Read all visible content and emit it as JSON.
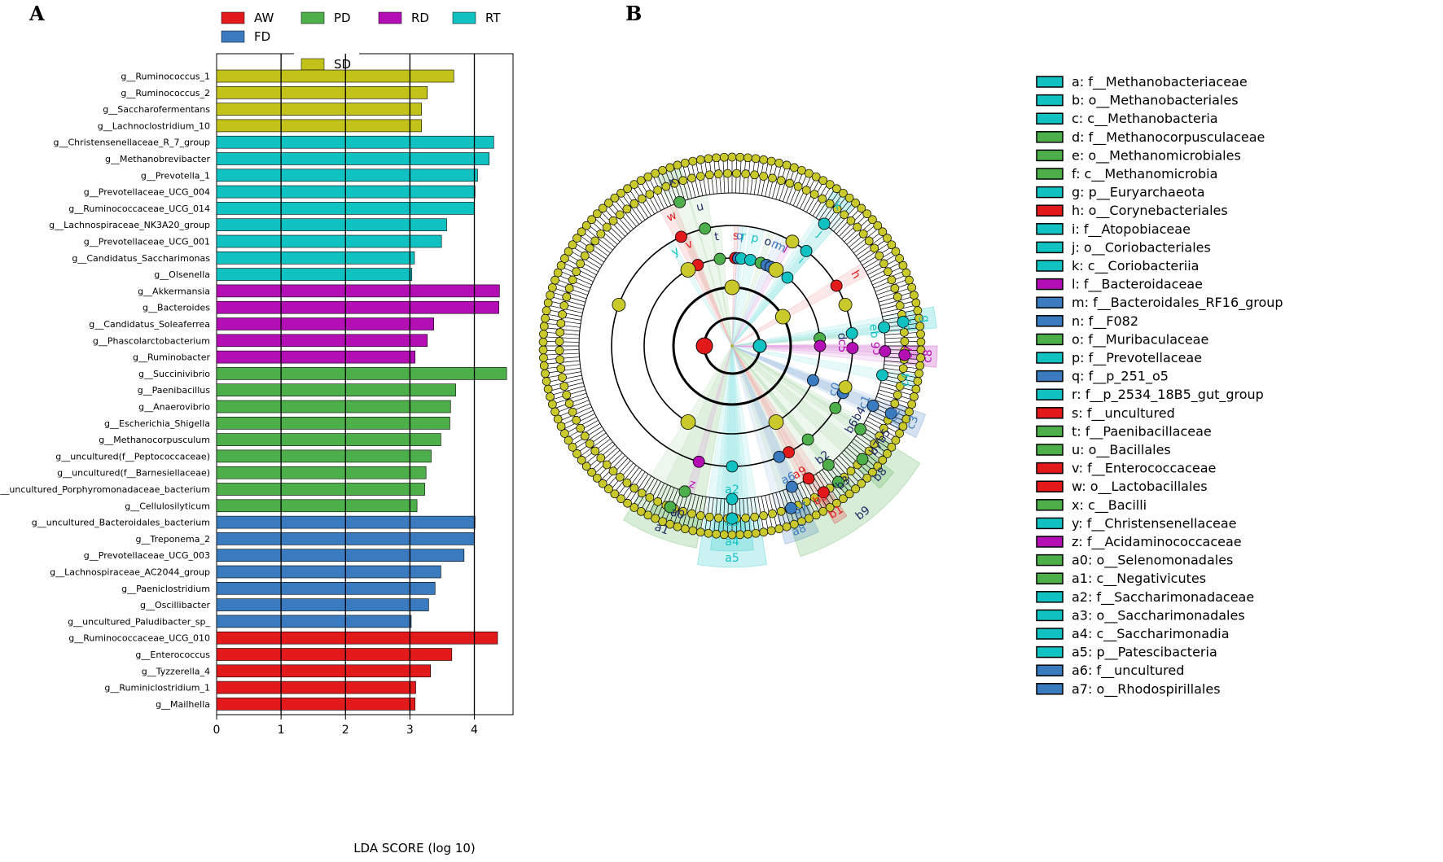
{
  "colors": {
    "AW": "#e31a1c",
    "PD": "#4daf4a",
    "RD": "#b40fb4",
    "RT": "#11c2c2",
    "FD": "#3a7abf",
    "SD": "#c2c21a",
    "node_default": "#c9c92c"
  },
  "panels": {
    "a": "A",
    "b": "B"
  },
  "chart_data": [
    {
      "type": "bar",
      "orientation": "horizontal",
      "title": "",
      "xlabel": "LDA SCORE (log 10)",
      "ylabel": "",
      "xlim": [
        0,
        4.6
      ],
      "xticks": [
        "0",
        "1",
        "2",
        "3",
        "4"
      ],
      "grid": true,
      "legend": {
        "placement": "top",
        "entries": [
          {
            "name": "AW",
            "group": "AW"
          },
          {
            "name": "PD",
            "group": "PD"
          },
          {
            "name": "RD",
            "group": "RD"
          },
          {
            "name": "RT",
            "group": "RT"
          },
          {
            "name": "FD",
            "group": "FD"
          },
          {
            "name": "SD",
            "group": "SD"
          }
        ]
      },
      "bars": [
        {
          "label": "g__Ruminococcus_1",
          "value": 3.68,
          "group": "SD"
        },
        {
          "label": "g__Ruminococcus_2",
          "value": 3.27,
          "group": "SD"
        },
        {
          "label": "g__Saccharofermentans",
          "value": 3.18,
          "group": "SD"
        },
        {
          "label": "g__Lachnoclostridium_10",
          "value": 3.18,
          "group": "SD"
        },
        {
          "label": "g__Christensenellaceae_R_7_group",
          "value": 4.3,
          "group": "RT"
        },
        {
          "label": "g__Methanobrevibacter",
          "value": 4.23,
          "group": "RT"
        },
        {
          "label": "g__Prevotella_1",
          "value": 4.05,
          "group": "RT"
        },
        {
          "label": "g__Prevotellaceae_UCG_004",
          "value": 4.01,
          "group": "RT"
        },
        {
          "label": "g__Ruminococcaceae_UCG_014",
          "value": 4.0,
          "group": "RT"
        },
        {
          "label": "g__Lachnospiraceae_NK3A20_group",
          "value": 3.57,
          "group": "RT"
        },
        {
          "label": "g__Prevotellaceae_UCG_001",
          "value": 3.49,
          "group": "RT"
        },
        {
          "label": "g__Candidatus_Saccharimonas",
          "value": 3.07,
          "group": "RT"
        },
        {
          "label": "g__Olsenella",
          "value": 3.03,
          "group": "RT"
        },
        {
          "label": "g__Akkermansia",
          "value": 4.39,
          "group": "RD"
        },
        {
          "label": "g__Bacteroides",
          "value": 4.38,
          "group": "RD"
        },
        {
          "label": "g__Candidatus_Soleaferrea",
          "value": 3.37,
          "group": "RD"
        },
        {
          "label": "g__Phascolarctobacterium",
          "value": 3.27,
          "group": "RD"
        },
        {
          "label": "g__Ruminobacter",
          "value": 3.08,
          "group": "RD"
        },
        {
          "label": "g__Succinivibrio",
          "value": 4.5,
          "group": "PD"
        },
        {
          "label": "g__Paenibacillus",
          "value": 3.71,
          "group": "PD"
        },
        {
          "label": "g__Anaerovibrio",
          "value": 3.63,
          "group": "PD"
        },
        {
          "label": "g__Escherichia_Shigella",
          "value": 3.62,
          "group": "PD"
        },
        {
          "label": "g__Methanocorpusculum",
          "value": 3.48,
          "group": "PD"
        },
        {
          "label": "g__uncultured(f__Peptococcaceae)",
          "value": 3.33,
          "group": "PD"
        },
        {
          "label": "g__uncultured(f__Barnesiellaceae)",
          "value": 3.25,
          "group": "PD"
        },
        {
          "label": "g__uncultured_Porphyromonadaceae_bacterium",
          "value": 3.23,
          "group": "PD"
        },
        {
          "label": "g__Cellulosilyticum",
          "value": 3.11,
          "group": "PD"
        },
        {
          "label": "g__uncultured_Bacteroidales_bacterium",
          "value": 4.01,
          "group": "FD"
        },
        {
          "label": "g__Treponema_2",
          "value": 4.0,
          "group": "FD"
        },
        {
          "label": "g__Prevotellaceae_UCG_003",
          "value": 3.84,
          "group": "FD"
        },
        {
          "label": "g__Lachnospiraceae_AC2044_group",
          "value": 3.48,
          "group": "FD"
        },
        {
          "label": "g__Paeniclostridium",
          "value": 3.39,
          "group": "FD"
        },
        {
          "label": "g__Oscillibacter",
          "value": 3.29,
          "group": "FD"
        },
        {
          "label": "g__uncultured_Paludibacter_sp_",
          "value": 3.02,
          "group": "FD"
        },
        {
          "label": "g__Ruminococcaceae_UCG_010",
          "value": 4.36,
          "group": "AW"
        },
        {
          "label": "g__Enterococcus",
          "value": 3.65,
          "group": "AW"
        },
        {
          "label": "g__Tyzzerella_4",
          "value": 3.32,
          "group": "AW"
        },
        {
          "label": "g__Ruminiclostridium_1",
          "value": 3.09,
          "group": "AW"
        },
        {
          "label": "g__Mailhella",
          "value": 3.08,
          "group": "AW"
        }
      ]
    },
    {
      "type": "cladogram",
      "title": "",
      "sectors": [
        {
          "label": "x",
          "group": "PD",
          "angle": -20,
          "span": 8,
          "ring": 5
        },
        {
          "label": "u",
          "group": "PD",
          "angle": -13,
          "span": 7,
          "ring": 4
        },
        {
          "label": "t",
          "group": "PD",
          "angle": -8,
          "span": 5,
          "ring": 3
        },
        {
          "label": "w",
          "group": "AW",
          "angle": -25,
          "span": 6,
          "ring": 4
        },
        {
          "label": "v",
          "group": "AW",
          "angle": -23,
          "span": 4,
          "ring": 3
        },
        {
          "label": "y",
          "group": "RT",
          "angle": -31,
          "span": 3,
          "ring": 3
        },
        {
          "label": "s",
          "group": "AW",
          "angle": 2,
          "span": 2,
          "ring": 3
        },
        {
          "label": "q",
          "group": "FD",
          "angle": 4,
          "span": 2,
          "ring": 3
        },
        {
          "label": "r",
          "group": "RT",
          "angle": 6,
          "span": 2,
          "ring": 3
        },
        {
          "label": "p",
          "group": "RT",
          "angle": 12,
          "span": 7,
          "ring": 3
        },
        {
          "label": "o",
          "group": "PD",
          "angle": 19,
          "span": 3,
          "ring": 3
        },
        {
          "label": "n",
          "group": "FD",
          "angle": 23,
          "span": 2,
          "ring": 3
        },
        {
          "label": "m",
          "group": "FD",
          "angle": 26,
          "span": 2,
          "ring": 3
        },
        {
          "label": "l",
          "group": "RD",
          "angle": 29,
          "span": 3,
          "ring": 3
        },
        {
          "label": "k",
          "group": "RT",
          "angle": 37,
          "span": 8,
          "ring": 5
        },
        {
          "label": "j",
          "group": "RT",
          "angle": 38,
          "span": 6,
          "ring": 4
        },
        {
          "label": "i",
          "group": "RT",
          "angle": 39,
          "span": 4,
          "ring": 3
        },
        {
          "label": "h",
          "group": "AW",
          "angle": 60,
          "span": 5,
          "ring": 4
        },
        {
          "label": "g",
          "group": "RT",
          "angle": 82,
          "span": 6,
          "ring": 6
        },
        {
          "label": "fc",
          "group": "RT",
          "angle": 83,
          "span": 4,
          "ring": 5
        },
        {
          "label": "eb",
          "group": "RT",
          "angle": 84,
          "span": 3,
          "ring": 4
        },
        {
          "label": "d",
          "group": "PD",
          "angle": 85,
          "span": 2,
          "ring": 3
        },
        {
          "label": "c8",
          "group": "RD",
          "angle": 93,
          "span": 6,
          "ring": 6
        },
        {
          "label": "c7",
          "group": "RD",
          "angle": 92,
          "span": 4,
          "ring": 5
        },
        {
          "label": "c6",
          "group": "RD",
          "angle": 91,
          "span": 3,
          "ring": 4
        },
        {
          "label": "c5",
          "group": "RD",
          "angle": 90,
          "span": 2,
          "ring": 3
        },
        {
          "label": "c4",
          "group": "RT",
          "angle": 101,
          "span": 4,
          "ring": 5
        },
        {
          "label": "c3",
          "group": "FD",
          "angle": 113,
          "span": 7,
          "ring": 6
        },
        {
          "label": "c2",
          "group": "FD",
          "angle": 113,
          "span": 5,
          "ring": 5
        },
        {
          "label": "c1",
          "group": "FD",
          "angle": 113,
          "span": 4,
          "ring": 4
        },
        {
          "label": "c0",
          "group": "FD",
          "angle": 113,
          "span": 3,
          "ring": 3
        },
        {
          "label": "b7b5",
          "group": "PD",
          "angle": 123,
          "span": 4,
          "ring": 5
        },
        {
          "label": "b6b4",
          "group": "PD",
          "angle": 121,
          "span": 3,
          "ring": 4
        },
        {
          "label": "b8",
          "group": "PD",
          "angle": 131,
          "span": 6,
          "ring": 6
        },
        {
          "label": "b9",
          "group": "PD",
          "angle": 142,
          "span": 40,
          "ring": 7
        },
        {
          "label": "b1",
          "group": "AW",
          "angle": 148,
          "span": 4,
          "ring": 6
        },
        {
          "label": "b0",
          "group": "AW",
          "angle": 150,
          "span": 3,
          "ring": 5
        },
        {
          "label": "a9",
          "group": "AW",
          "angle": 152,
          "span": 2,
          "ring": 4
        },
        {
          "label": "b3",
          "group": "PD",
          "angle": 141,
          "span": 3,
          "ring": 5
        },
        {
          "label": "b2",
          "group": "PD",
          "angle": 141,
          "span": 2,
          "ring": 4
        },
        {
          "label": "a8",
          "group": "FD",
          "angle": 160,
          "span": 10,
          "ring": 6
        },
        {
          "label": "a7",
          "group": "FD",
          "angle": 157,
          "span": 5,
          "ring": 5
        },
        {
          "label": "a6",
          "group": "FD",
          "angle": 157,
          "span": 3,
          "ring": 4
        },
        {
          "label": "a5",
          "group": "RT",
          "angle": 180,
          "span": 18,
          "ring": 7
        },
        {
          "label": "a4",
          "group": "RT",
          "angle": 180,
          "span": 12,
          "ring": 6
        },
        {
          "label": "a3",
          "group": "RT",
          "angle": 180,
          "span": 8,
          "ring": 5
        },
        {
          "label": "a2",
          "group": "RT",
          "angle": 180,
          "span": 5,
          "ring": 4
        },
        {
          "label": "a1",
          "group": "PD",
          "angle": 201,
          "span": 22,
          "ring": 6
        },
        {
          "label": "a0",
          "group": "PD",
          "angle": 198,
          "span": 16,
          "ring": 5
        },
        {
          "label": "z",
          "group": "RD",
          "angle": 196,
          "span": 3,
          "ring": 4
        }
      ],
      "legend": [
        {
          "key": "a",
          "text": "a: f__Methanobacteriaceae",
          "group": "RT"
        },
        {
          "key": "b",
          "text": "b: o__Methanobacteriales",
          "group": "RT"
        },
        {
          "key": "c",
          "text": "c: c__Methanobacteria",
          "group": "RT"
        },
        {
          "key": "d",
          "text": "d: f__Methanocorpusculaceae",
          "group": "PD"
        },
        {
          "key": "e",
          "text": "e: o__Methanomicrobiales",
          "group": "PD"
        },
        {
          "key": "f",
          "text": "f: c__Methanomicrobia",
          "group": "PD"
        },
        {
          "key": "g",
          "text": "g: p__Euryarchaeota",
          "group": "RT"
        },
        {
          "key": "h",
          "text": "h: o__Corynebacteriales",
          "group": "AW"
        },
        {
          "key": "i",
          "text": "i: f__Atopobiaceae",
          "group": "RT"
        },
        {
          "key": "j",
          "text": "j: o__Coriobacteriales",
          "group": "RT"
        },
        {
          "key": "k",
          "text": "k: c__Coriobacteriia",
          "group": "RT"
        },
        {
          "key": "l",
          "text": "l: f__Bacteroidaceae",
          "group": "RD"
        },
        {
          "key": "m",
          "text": "m: f__Bacteroidales_RF16_group",
          "group": "FD"
        },
        {
          "key": "n",
          "text": "n: f__F082",
          "group": "FD"
        },
        {
          "key": "o",
          "text": "o: f__Muribaculaceae",
          "group": "PD"
        },
        {
          "key": "p",
          "text": "p: f__Prevotellaceae",
          "group": "RT"
        },
        {
          "key": "q",
          "text": "q: f__p_251_o5",
          "group": "FD"
        },
        {
          "key": "r",
          "text": "r: f__p_2534_18B5_gut_group",
          "group": "RT"
        },
        {
          "key": "s",
          "text": "s: f__uncultured",
          "group": "AW"
        },
        {
          "key": "t",
          "text": "t: f__Paenibacillaceae",
          "group": "PD"
        },
        {
          "key": "u",
          "text": "u: o__Bacillales",
          "group": "PD"
        },
        {
          "key": "v",
          "text": "v: f__Enterococcaceae",
          "group": "AW"
        },
        {
          "key": "w",
          "text": "w: o__Lactobacillales",
          "group": "AW"
        },
        {
          "key": "x",
          "text": "x: c__Bacilli",
          "group": "PD"
        },
        {
          "key": "y",
          "text": "y: f__Christensenellaceae",
          "group": "RT"
        },
        {
          "key": "z",
          "text": "z: f__Acidaminococcaceae",
          "group": "RD"
        },
        {
          "key": "a0",
          "text": "a0: o__Selenomonadales",
          "group": "PD"
        },
        {
          "key": "a1",
          "text": "a1: c__Negativicutes",
          "group": "PD"
        },
        {
          "key": "a2",
          "text": "a2: f__Saccharimonadaceae",
          "group": "RT"
        },
        {
          "key": "a3",
          "text": "a3: o__Saccharimonadales",
          "group": "RT"
        },
        {
          "key": "a4",
          "text": "a4: c__Saccharimonadia",
          "group": "RT"
        },
        {
          "key": "a5",
          "text": "a5: p__Patescibacteria",
          "group": "RT"
        },
        {
          "key": "a6",
          "text": "a6: f__uncultured",
          "group": "FD"
        },
        {
          "key": "a7",
          "text": "a7: o__Rhodospirillales",
          "group": "FD"
        }
      ]
    }
  ]
}
